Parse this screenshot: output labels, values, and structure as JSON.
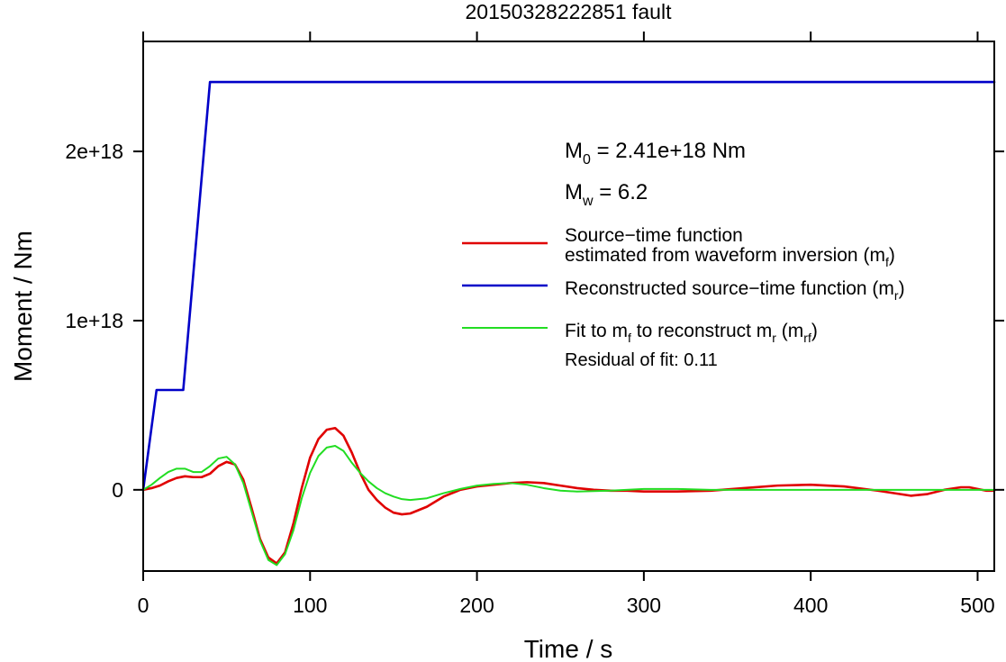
{
  "chart_data": {
    "type": "line",
    "title": "20150328222851 fault",
    "xlabel": "Time / s",
    "ylabel": "Moment / Nm",
    "xlim": [
      0,
      510
    ],
    "ylim": [
      -4.8e+17,
      2.65e+18
    ],
    "x_ticks": [
      0,
      100,
      200,
      300,
      400,
      500
    ],
    "x_tick_labels": [
      "0",
      "100",
      "200",
      "300",
      "400",
      "500"
    ],
    "y_ticks": [
      0,
      1e+18,
      2e+18
    ],
    "y_tick_labels": [
      "0",
      "1e+18",
      "2e+18"
    ],
    "grid": false,
    "legend_position": "right",
    "annotations": {
      "m0_symbol": "M",
      "m0_sub": "0",
      "m0_text": " = 2.41e+18 Nm",
      "mw_symbol": "M",
      "mw_sub": "w",
      "mw_text": " = 6.2",
      "residual_text": "Residual of fit: 0.11"
    },
    "legend": [
      {
        "color": "#e00000",
        "width": 2.6,
        "lines": [
          {
            "parts": [
              {
                "t": "Source−time function"
              }
            ]
          },
          {
            "parts": [
              {
                "t": "estimated from waveform inversion (m"
              },
              {
                "t": "f",
                "sub": true
              },
              {
                "t": ")"
              }
            ]
          }
        ]
      },
      {
        "color": "#0000c8",
        "width": 2.6,
        "lines": [
          {
            "parts": [
              {
                "t": "Reconstructed source−time function (m"
              },
              {
                "t": "r",
                "sub": true
              },
              {
                "t": ")"
              }
            ]
          }
        ]
      },
      {
        "color": "#22dd22",
        "width": 2.0,
        "lines": [
          {
            "parts": [
              {
                "t": "Fit to m"
              },
              {
                "t": "f",
                "sub": true
              },
              {
                "t": " to reconstruct m"
              },
              {
                "t": "r",
                "sub": true
              },
              {
                "t": " (m"
              },
              {
                "t": "rf",
                "sub": true
              },
              {
                "t": ")"
              }
            ]
          }
        ]
      }
    ],
    "series": [
      {
        "color": "#e00000",
        "width": 2.6,
        "x": [
          0,
          5,
          10,
          15,
          20,
          25,
          30,
          35,
          40,
          45,
          50,
          55,
          60,
          65,
          70,
          75,
          80,
          85,
          90,
          95,
          100,
          105,
          110,
          115,
          120,
          125,
          130,
          135,
          140,
          145,
          150,
          155,
          160,
          170,
          180,
          190,
          200,
          210,
          220,
          230,
          240,
          250,
          260,
          270,
          280,
          290,
          300,
          320,
          340,
          360,
          380,
          400,
          420,
          440,
          460,
          470,
          480,
          490,
          495,
          500,
          505,
          510
        ],
        "y": [
          0,
          1e+16,
          2.5e+16,
          5e+16,
          7e+16,
          8e+16,
          7.5e+16,
          7.5e+16,
          9.5e+16,
          1.4e+17,
          1.65e+17,
          1.5e+17,
          6e+16,
          -1.1e+17,
          -2.9e+17,
          -4e+17,
          -4.35e+17,
          -3.7e+17,
          -2e+17,
          1e+16,
          1.9e+17,
          3e+17,
          3.55e+17,
          3.65e+17,
          3.2e+17,
          2.2e+17,
          1e+17,
          0,
          -6e+16,
          -1.05e+17,
          -1.35e+17,
          -1.45e+17,
          -1.4e+17,
          -1e+17,
          -4e+16,
          0,
          2e+16,
          3e+16,
          4e+16,
          4.5e+16,
          4e+16,
          2.5e+16,
          1e+16,
          0,
          -5000000000000000.0,
          -5000000000000000.0,
          -1e+16,
          -1e+16,
          -5000000000000000.0,
          1e+16,
          2.5e+16,
          3e+16,
          2e+16,
          -5000000000000000.0,
          -3.5e+16,
          -2.5e+16,
          0,
          1.5e+16,
          1.5e+16,
          5000000000000000.0,
          -5000000000000000.0,
          -5000000000000000.0
        ]
      },
      {
        "color": "#0000c8",
        "width": 2.6,
        "x": [
          0,
          8,
          24,
          40,
          510
        ],
        "y": [
          0,
          5.9e+17,
          5.9e+17,
          2.41e+18,
          2.41e+18
        ]
      },
      {
        "color": "#22dd22",
        "width": 2.0,
        "x": [
          0,
          5,
          10,
          15,
          20,
          25,
          30,
          35,
          40,
          45,
          50,
          55,
          60,
          65,
          70,
          75,
          80,
          85,
          90,
          95,
          100,
          105,
          110,
          115,
          120,
          125,
          130,
          135,
          140,
          145,
          150,
          155,
          160,
          170,
          180,
          190,
          200,
          210,
          220,
          230,
          240,
          250,
          260,
          280,
          300,
          320,
          340,
          360,
          380,
          400,
          420,
          440,
          460,
          480,
          500,
          510
        ],
        "y": [
          0,
          3e+16,
          7e+16,
          1.05e+17,
          1.25e+17,
          1.25e+17,
          1.05e+17,
          1.05e+17,
          1.4e+17,
          1.85e+17,
          1.95e+17,
          1.5e+17,
          4e+16,
          -1.3e+17,
          -3e+17,
          -4.15e+17,
          -4.45e+17,
          -3.8e+17,
          -2.4e+17,
          -5e+16,
          1e+17,
          2e+17,
          2.5e+17,
          2.6e+17,
          2.3e+17,
          1.6e+17,
          1e+17,
          5e+16,
          1e+16,
          -2e+16,
          -4e+16,
          -5.5e+16,
          -6e+16,
          -5e+16,
          -2e+16,
          5000000000000000.0,
          2.5e+16,
          3.5e+16,
          4e+16,
          3e+16,
          1e+16,
          -5000000000000000.0,
          -1e+16,
          -5000000000000000.0,
          5000000000000000.0,
          5000000000000000.0,
          0,
          0,
          0,
          0,
          0,
          0,
          0,
          0,
          0,
          0
        ]
      }
    ]
  }
}
